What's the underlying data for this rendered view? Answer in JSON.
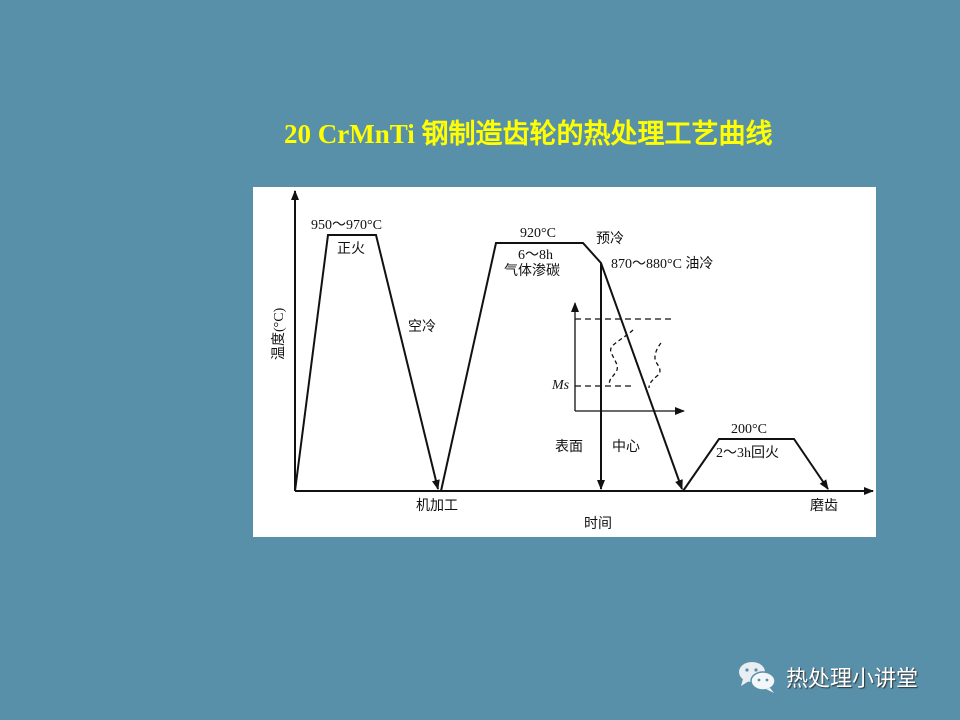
{
  "title": "20 CrMnTi 钢制造齿轮的热处理工艺曲线",
  "diagram": {
    "y_axis_label": "温度(°C)",
    "x_axis_label": "时间",
    "labels": {
      "normalize_temp": "950～970°C",
      "normalize": "正火",
      "air_cool": "空冷",
      "machining": "机加工",
      "carburize_temp": "920°C",
      "carburize_time": "6～8h",
      "carburize": "气体渗碳",
      "precool": "预冷",
      "oil_quench": "870～880°C 油冷",
      "ms": "Ms",
      "surface": "表面",
      "center": "中心",
      "temper_temp": "200°C",
      "temper": "2～3h回火",
      "grinding": "磨齿"
    }
  },
  "watermark": {
    "icon": "wechat-icon",
    "text": "热处理小讲堂"
  }
}
